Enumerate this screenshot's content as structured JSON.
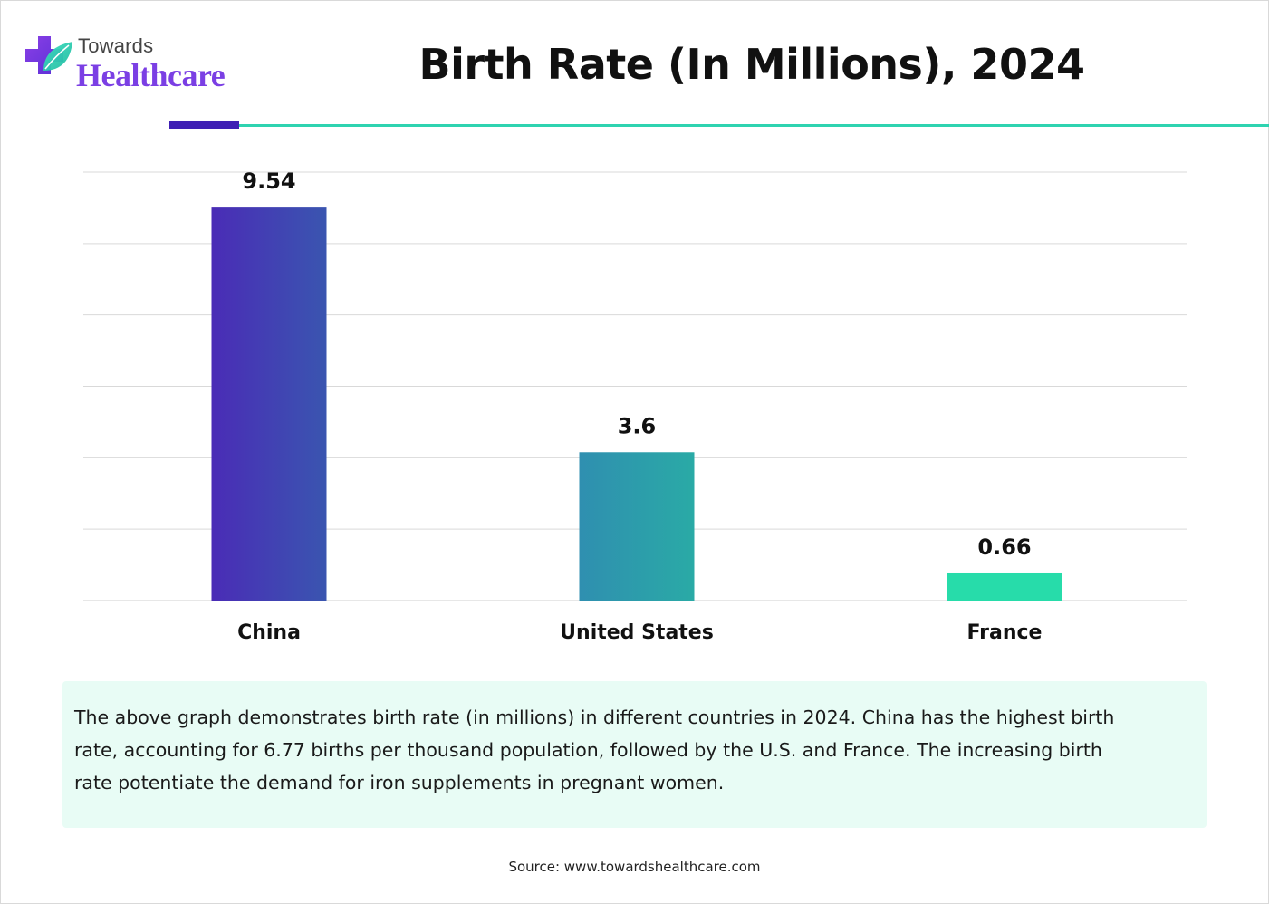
{
  "header": {
    "logo_top": "Towards",
    "logo_bottom": "Healthcare",
    "title": "Birth Rate (In Millions), 2024"
  },
  "colors": {
    "accent_purple": "#3f1fb4",
    "accent_teal": "#2ed3b0",
    "logo_purple": "#7b3fe4",
    "desc_background": "#e8fcf5",
    "gridline": "#d9d9d9"
  },
  "chart_data": {
    "type": "bar",
    "title": "Birth Rate (In Millions), 2024",
    "categories": [
      "China",
      "United States",
      "France"
    ],
    "values": [
      9.54,
      3.6,
      0.66
    ],
    "bar_gradients": [
      [
        "#4a2cb6",
        "#3a55b0"
      ],
      [
        "#2f8fb0",
        "#2aaaa6"
      ],
      [
        "#27dcaa",
        "#27dcaa"
      ]
    ],
    "ylim": [
      0,
      10.4
    ],
    "grid": true,
    "legend": "none",
    "xlabel": "",
    "ylabel": ""
  },
  "description": "The above graph demonstrates birth rate (in millions) in different countries in 2024. China has the highest birth rate, accounting for 6.77 births per thousand population, followed by the U.S. and France. The increasing birth rate potentiate the demand for iron supplements in pregnant women.",
  "source": "Source: www.towardshealthcare.com"
}
